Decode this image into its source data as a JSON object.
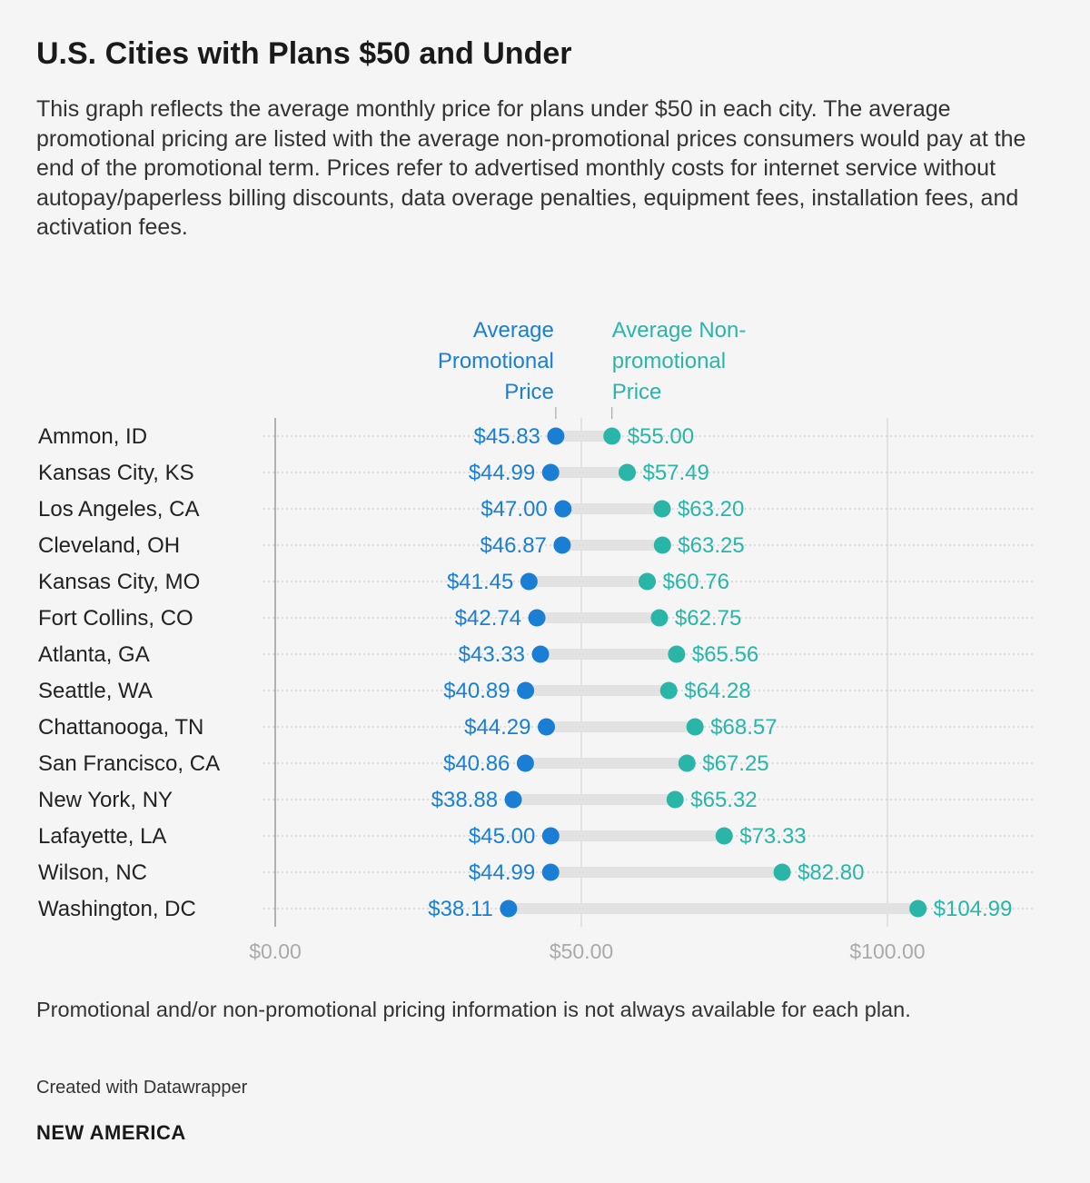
{
  "header": {
    "title": "U.S. Cities with Plans $50 and Under",
    "description": "This graph reflects the average monthly price for plans under $50 in each city. The average promotional pricing are listed with the average non-promotional prices consumers would pay at the end of the promotional term. Prices refer to advertised monthly costs for internet service without autopay/paperless billing discounts, data overage penalties, equipment fees, installation fees, and activation fees."
  },
  "chart_data": {
    "type": "dot-range",
    "title": "U.S. Cities with Plans $50 and Under",
    "categories": [
      "Ammon, ID",
      "Kansas City, KS",
      "Los Angeles, CA",
      "Cleveland, OH",
      "Kansas City, MO",
      "Fort Collins, CO",
      "Atlanta, GA",
      "Seattle, WA",
      "Chattanooga, TN",
      "San Francisco, CA",
      "New York, NY",
      "Lafayette, LA",
      "Wilson, NC",
      "Washington, DC"
    ],
    "series": [
      {
        "name": "Average Promotional Price",
        "legend_lines": [
          "Average",
          "Promotional",
          "Price"
        ],
        "color": "#1a7fd4",
        "values": [
          45.83,
          44.99,
          47.0,
          46.87,
          41.45,
          42.74,
          43.33,
          40.89,
          44.29,
          40.86,
          38.88,
          45.0,
          44.99,
          38.11
        ],
        "labels": [
          "$45.83",
          "$44.99",
          "$47.00",
          "$46.87",
          "$41.45",
          "$42.74",
          "$43.33",
          "$40.89",
          "$44.29",
          "$40.86",
          "$38.88",
          "$45.00",
          "$44.99",
          "$38.11"
        ]
      },
      {
        "name": "Average Non-promotional Price",
        "legend_lines": [
          "Average Non-",
          "promotional",
          "Price"
        ],
        "color": "#2ab5a9",
        "values": [
          55.0,
          57.49,
          63.2,
          63.25,
          60.76,
          62.75,
          65.56,
          64.28,
          68.57,
          67.25,
          65.32,
          73.33,
          82.8,
          104.99
        ],
        "labels": [
          "$55.00",
          "$57.49",
          "$63.20",
          "$63.25",
          "$60.76",
          "$62.75",
          "$65.56",
          "$64.28",
          "$68.57",
          "$67.25",
          "$65.32",
          "$73.33",
          "$82.80",
          "$104.99"
        ]
      }
    ],
    "xlim": [
      0,
      120
    ],
    "xticks": [
      0,
      50,
      100
    ],
    "xtick_labels": [
      "$0.00",
      "$50.00",
      "$100.00"
    ],
    "legend_position": "top-center",
    "grid": true
  },
  "footer": {
    "notes": "Promotional and/or non-promotional pricing information is not always available for each plan.",
    "credit": "Created with Datawrapper",
    "brand": "NEW AMERICA"
  }
}
